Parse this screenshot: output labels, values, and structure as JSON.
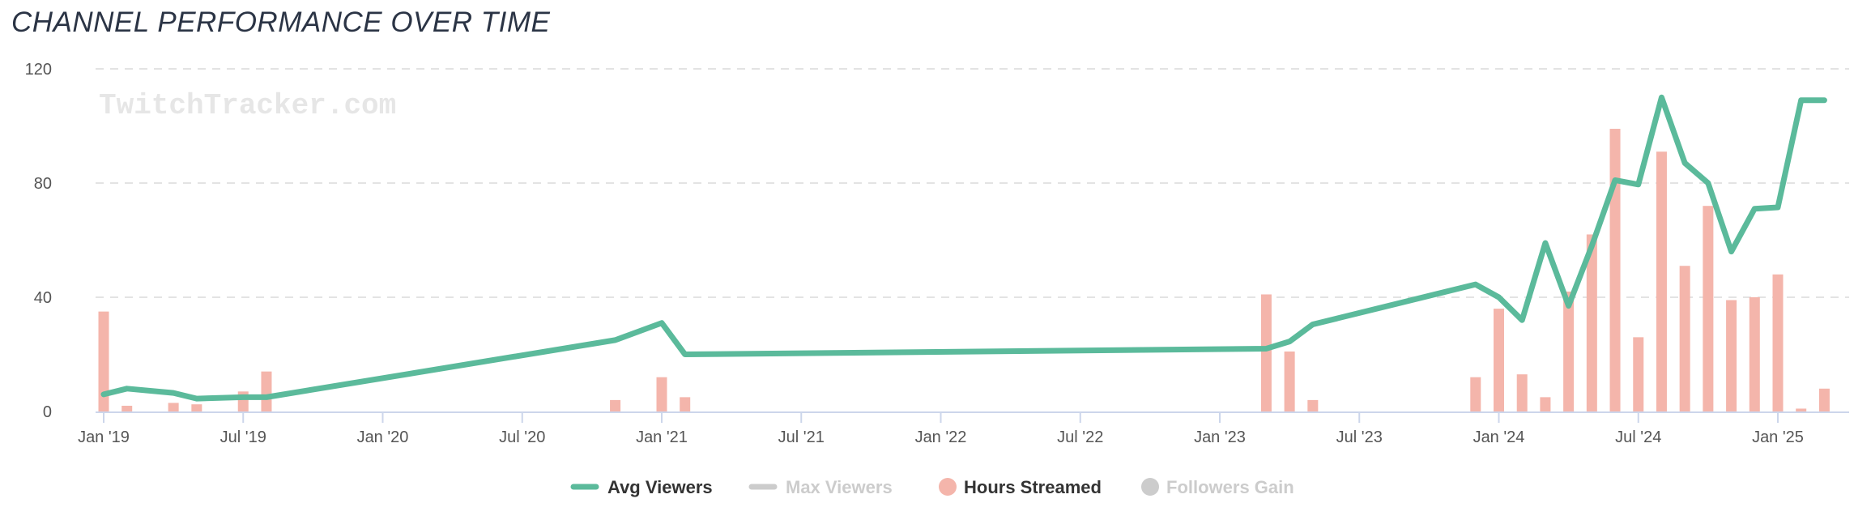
{
  "title": "CHANNEL PERFORMANCE OVER TIME",
  "watermark": "TwitchTracker.com",
  "chart_data": {
    "type": "bar+line",
    "title": "CHANNEL PERFORMANCE OVER TIME",
    "x_unit": "months since Jan 2019",
    "x_ticks": [
      {
        "m": 0,
        "label": "Jan '19"
      },
      {
        "m": 6,
        "label": "Jul '19"
      },
      {
        "m": 12,
        "label": "Jan '20"
      },
      {
        "m": 18,
        "label": "Jul '20"
      },
      {
        "m": 24,
        "label": "Jan '21"
      },
      {
        "m": 30,
        "label": "Jul '21"
      },
      {
        "m": 36,
        "label": "Jan '22"
      },
      {
        "m": 42,
        "label": "Jul '22"
      },
      {
        "m": 48,
        "label": "Jan '23"
      },
      {
        "m": 54,
        "label": "Jul '23"
      },
      {
        "m": 60,
        "label": "Jan '24"
      },
      {
        "m": 66,
        "label": "Jul '24"
      },
      {
        "m": 72,
        "label": "Jan '25"
      }
    ],
    "y_ticks": [
      0,
      40,
      80,
      120
    ],
    "ylim": [
      0,
      120
    ],
    "grid": true,
    "legend_position": "bottom-center",
    "legend": [
      {
        "name": "Avg Viewers",
        "color": "#5bba9b",
        "active": true,
        "shape": "line"
      },
      {
        "name": "Max Viewers",
        "color": "#cccccc",
        "active": false,
        "shape": "line"
      },
      {
        "name": "Hours Streamed",
        "color": "#f4b5ab",
        "active": true,
        "shape": "circle"
      },
      {
        "name": "Followers Gain",
        "color": "#cccccc",
        "active": false,
        "shape": "circle"
      }
    ],
    "series": [
      {
        "name": "Hours Streamed",
        "type": "bar",
        "color": "#f4b5ab",
        "points": [
          [
            0,
            35
          ],
          [
            1,
            2
          ],
          [
            3,
            3
          ],
          [
            4,
            2.5
          ],
          [
            6,
            7
          ],
          [
            7,
            14
          ],
          [
            22,
            4
          ],
          [
            24,
            12
          ],
          [
            25,
            5
          ],
          [
            50,
            41
          ],
          [
            51,
            21
          ],
          [
            52,
            4
          ],
          [
            59,
            12
          ],
          [
            60,
            36
          ],
          [
            61,
            13
          ],
          [
            62,
            5
          ],
          [
            63,
            42
          ],
          [
            64,
            62
          ],
          [
            65,
            99
          ],
          [
            66,
            26
          ],
          [
            67,
            91
          ],
          [
            68,
            51
          ],
          [
            69,
            72
          ],
          [
            70,
            39
          ],
          [
            71,
            40
          ],
          [
            72,
            48
          ],
          [
            73,
            1
          ],
          [
            74,
            8
          ]
        ]
      },
      {
        "name": "Avg Viewers",
        "type": "line",
        "color": "#5bba9b",
        "points": [
          [
            0,
            6
          ],
          [
            1,
            8
          ],
          [
            3,
            6.5
          ],
          [
            4,
            4.5
          ],
          [
            6,
            5
          ],
          [
            7,
            5
          ],
          [
            22,
            25
          ],
          [
            24,
            31
          ],
          [
            25,
            20
          ],
          [
            50,
            22
          ],
          [
            51,
            24.5
          ],
          [
            52,
            30.5
          ],
          [
            59,
            44.5
          ],
          [
            60,
            40
          ],
          [
            61,
            32
          ],
          [
            62,
            59
          ],
          [
            63,
            37
          ],
          [
            64,
            58
          ],
          [
            65,
            81
          ],
          [
            66,
            79.5
          ],
          [
            67,
            110
          ],
          [
            68,
            87
          ],
          [
            69,
            80
          ],
          [
            70,
            56
          ],
          [
            71,
            71
          ],
          [
            72,
            71.5
          ],
          [
            73,
            109
          ],
          [
            74,
            109
          ]
        ]
      }
    ]
  }
}
